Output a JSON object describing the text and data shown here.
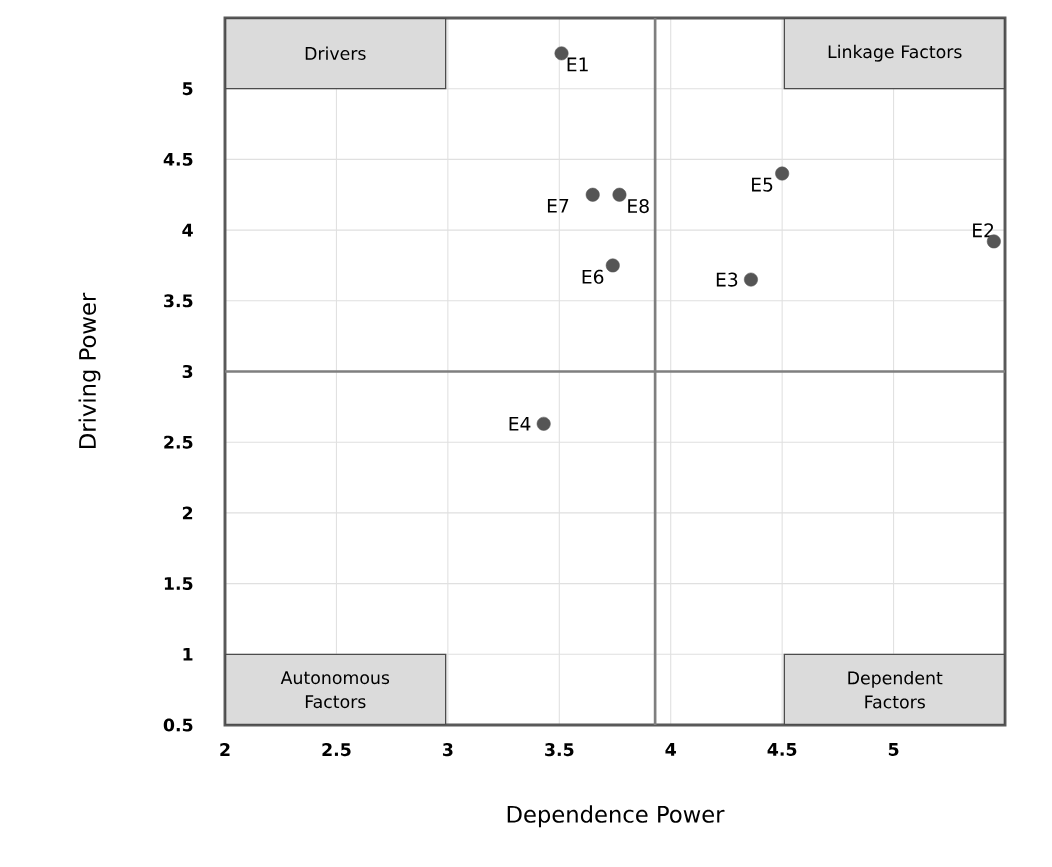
{
  "chart_data": {
    "type": "scatter",
    "xlabel": "Dependence Power",
    "ylabel": "Driving Power",
    "xlim": [
      2,
      5.5
    ],
    "ylim": [
      0.5,
      5.5
    ],
    "xticks": [
      2,
      2.5,
      3,
      3.5,
      4,
      4.5,
      5
    ],
    "yticks": [
      0.5,
      1,
      1.5,
      2,
      2.5,
      3,
      3.5,
      4,
      4.5,
      5
    ],
    "grid": true,
    "marker": "circle",
    "ref_lines": [
      {
        "axis": "x",
        "value": 3.93,
        "color": "#7f7f7f"
      },
      {
        "axis": "y",
        "value": 3,
        "color": "#7f7f7f"
      }
    ],
    "annotations": [
      "Drivers",
      "Linkage Factors",
      "Autonomous Factors",
      "Dependent Factors"
    ],
    "series": [
      {
        "name": "E1",
        "color": "#555555",
        "x": [
          3.51
        ],
        "values": [
          5.25
        ]
      },
      {
        "name": "E2",
        "color": "#555555",
        "x": [
          5.45
        ],
        "values": [
          3.92
        ]
      },
      {
        "name": "E3",
        "color": "#555555",
        "x": [
          4.36
        ],
        "values": [
          3.65
        ]
      },
      {
        "name": "E4",
        "color": "#555555",
        "x": [
          3.43
        ],
        "values": [
          2.63
        ]
      },
      {
        "name": "E5",
        "color": "#555555",
        "x": [
          4.5
        ],
        "values": [
          4.4
        ]
      },
      {
        "name": "E6",
        "color": "#555555",
        "x": [
          3.74
        ],
        "values": [
          3.75
        ]
      },
      {
        "name": "E7",
        "color": "#555555",
        "x": [
          3.65
        ],
        "values": [
          4.25
        ]
      },
      {
        "name": "E8",
        "color": "#555555",
        "x": [
          3.77
        ],
        "values": [
          4.25
        ]
      }
    ]
  }
}
